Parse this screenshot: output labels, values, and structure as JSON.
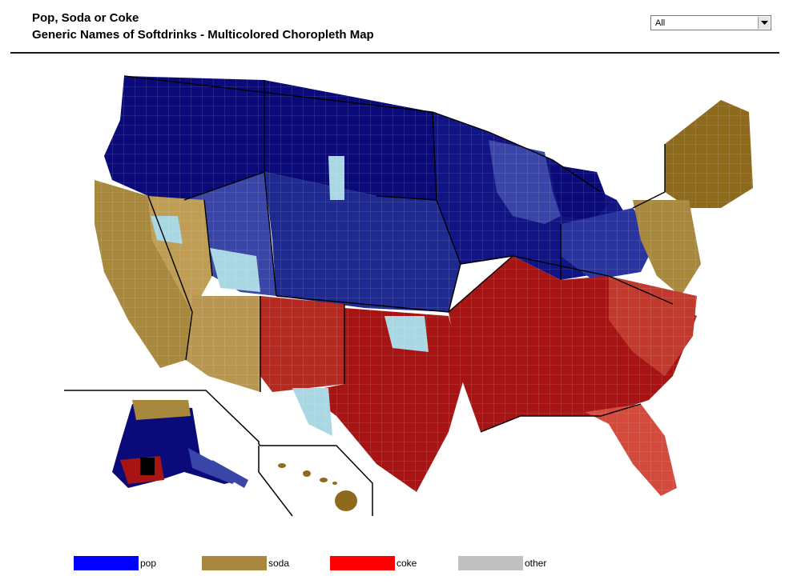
{
  "header": {
    "title": "Pop, Soda or Coke",
    "subtitle": "Generic Names of Softdrinks - Multicolored Choropleth Map"
  },
  "filter": {
    "selected": "All"
  },
  "colors": {
    "pop_dark": "#0a0a7a",
    "pop_mid": "#3a45a8",
    "pop_light": "#6a7fc8",
    "soda": "#a8883c",
    "soda_light": "#c7aa63",
    "coke": "#a81414",
    "coke_light": "#d44a3c",
    "light_blue": "#a9d8e4",
    "gray": "#6a6a6a",
    "black": "#000000"
  },
  "legend": [
    {
      "label": "pop",
      "color": "#0000ff"
    },
    {
      "label": "soda",
      "color": "#a8883c"
    },
    {
      "label": "coke",
      "color": "#ff0000"
    },
    {
      "label": "other",
      "color": "#c0c0c0"
    }
  ]
}
